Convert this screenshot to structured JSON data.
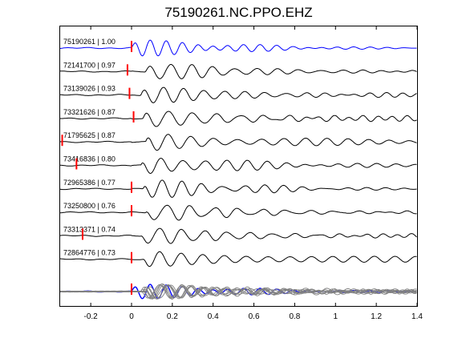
{
  "chart_data": {
    "type": "line",
    "title": "75190261.NC.PPO.EHZ",
    "xlabel": "",
    "ylabel": "",
    "xlim": [
      -0.35,
      1.4
    ],
    "xticks": [
      -0.2,
      0,
      0.2,
      0.4,
      0.6,
      0.8,
      1,
      1.2,
      1.4
    ],
    "xtick_labels": [
      "-0.2",
      "0",
      "0.2",
      "0.4",
      "0.6",
      "0.8",
      "1",
      "1.2",
      "1.4"
    ],
    "grid": false,
    "colors": {
      "reference": "#0000ff",
      "trace": "#000000",
      "pick": "#ff0000",
      "stack": "#808080"
    },
    "series": [
      {
        "label": "75190261 | 1.00",
        "pick": 0.0,
        "reference": true
      },
      {
        "label": "72141700 | 0.97",
        "pick": -0.02
      },
      {
        "label": "73139026 | 0.93",
        "pick": -0.01
      },
      {
        "label": "73321626 | 0.87",
        "pick": 0.01
      },
      {
        "label": "71795625 | 0.87",
        "pick": -0.34
      },
      {
        "label": "73416836 | 0.80",
        "pick": -0.27
      },
      {
        "label": "72965386 | 0.77",
        "pick": 0.0
      },
      {
        "label": "73250800 | 0.76",
        "pick": 0.0
      },
      {
        "label": "73313371 | 0.74",
        "pick": -0.24
      },
      {
        "label": "72864776 | 0.73",
        "pick": 0.0
      }
    ]
  }
}
